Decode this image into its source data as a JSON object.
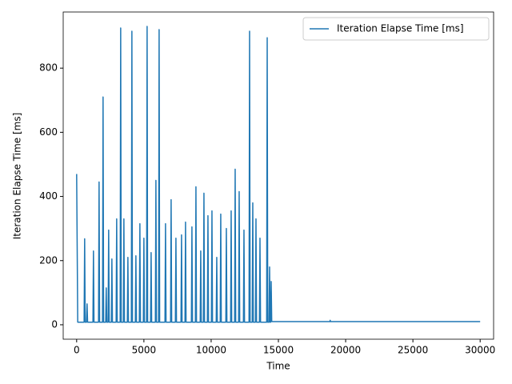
{
  "chart_data": {
    "type": "line",
    "x_label": "Time",
    "y_label": "Iteration Elapse Time [ms]",
    "x": [
      0,
      80,
      555,
      595,
      635,
      734,
      774,
      814,
      1210,
      1250,
      1290,
      1627,
      1667,
      1707,
      1924,
      1964,
      2004,
      2160,
      2200,
      2240,
      2340,
      2380,
      2420,
      2580,
      2620,
      2660,
      2936,
      2976,
      3016,
      3234,
      3274,
      3314,
      3472,
      3512,
      3552,
      3770,
      3810,
      3850,
      4067,
      4107,
      4147,
      4365,
      4405,
      4445,
      4662,
      4702,
      4742,
      4960,
      5000,
      5040,
      5198,
      5238,
      5278,
      5496,
      5536,
      5576,
      5853,
      5893,
      5933,
      6091,
      6131,
      6171,
      6567,
      6607,
      6647,
      6984,
      7024,
      7064,
      7341,
      7381,
      7421,
      7758,
      7798,
      7838,
      8055,
      8095,
      8135,
      8531,
      8571,
      8611,
      8829,
      8869,
      8909,
      9186,
      9226,
      9266,
      9424,
      9464,
      9504,
      9722,
      9762,
      9802,
      10020,
      10060,
      10100,
      10377,
      10417,
      10457,
      10674,
      10714,
      10754,
      11091,
      11131,
      11171,
      11448,
      11488,
      11528,
      11746,
      11786,
      11826,
      12043,
      12083,
      12123,
      12400,
      12440,
      12480,
      12817,
      12857,
      12897,
      13055,
      13095,
      13135,
      13293,
      13333,
      13373,
      13591,
      13631,
      13671,
      14127,
      14167,
      14207,
      14305,
      14345,
      14385,
      14424,
      14464,
      14504,
      18830,
      18850,
      18870,
      30000
    ],
    "series": [
      {
        "name": "Iteration Elapse Time [ms]",
        "color": "#1f77b4",
        "values": [
          470,
          8,
          8,
          268,
          8,
          8,
          65,
          8,
          8,
          230,
          8,
          8,
          445,
          8,
          8,
          710,
          8,
          8,
          115,
          8,
          8,
          295,
          8,
          8,
          205,
          8,
          8,
          330,
          8,
          8,
          925,
          8,
          8,
          330,
          8,
          8,
          210,
          8,
          8,
          915,
          8,
          8,
          215,
          8,
          8,
          315,
          8,
          8,
          270,
          8,
          8,
          930,
          8,
          8,
          225,
          8,
          8,
          450,
          8,
          8,
          920,
          8,
          8,
          315,
          8,
          8,
          390,
          8,
          8,
          270,
          8,
          8,
          280,
          8,
          8,
          320,
          8,
          8,
          305,
          8,
          8,
          430,
          8,
          8,
          230,
          8,
          8,
          410,
          8,
          8,
          340,
          8,
          8,
          355,
          8,
          8,
          210,
          8,
          8,
          345,
          8,
          8,
          300,
          8,
          8,
          355,
          8,
          8,
          485,
          8,
          8,
          415,
          8,
          8,
          295,
          8,
          8,
          915,
          8,
          8,
          380,
          8,
          8,
          330,
          8,
          8,
          270,
          8,
          8,
          895,
          8,
          8,
          180,
          8,
          8,
          135,
          10,
          10,
          14,
          10,
          10
        ]
      }
    ],
    "xlim": [
      -1000,
      31000
    ],
    "xticks": [
      0,
      5000,
      10000,
      15000,
      20000,
      25000,
      30000
    ],
    "ylim": [
      -45,
      975
    ],
    "yticks": [
      0,
      200,
      400,
      600,
      800
    ],
    "grid": false,
    "legend": "upper right"
  }
}
